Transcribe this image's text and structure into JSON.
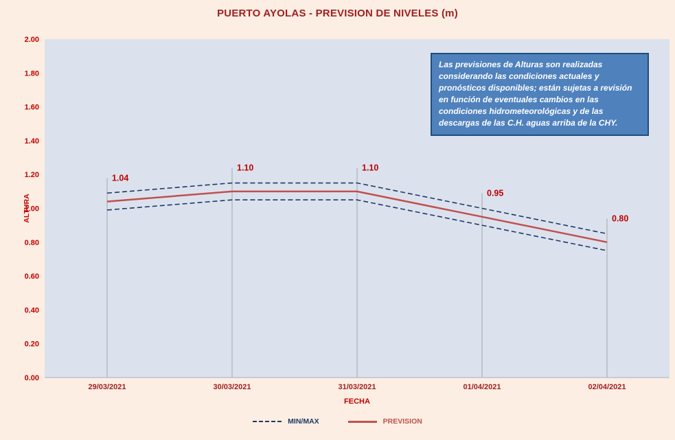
{
  "title": "PUERTO AYOLAS - PREVISION DE NIVELES (m)",
  "info_box": {
    "text": "Las previsiones de Alturas son realizadas considerando las condiciones actuales y pronósticos disponibles;  están sujetas a revisión en función de eventuales cambios en las condiciones hidrometeorológicas y de las descargas de las C.H. aguas arriba de la CHY."
  },
  "legend": [
    {
      "label": "MIN/MAX",
      "style": "dashed",
      "color": "#1F3864"
    },
    {
      "label": "PREVISION",
      "style": "solid",
      "color": "#C0504D"
    }
  ],
  "chart_data": {
    "type": "line",
    "title": "PUERTO AYOLAS - PREVISION DE NIVELES (m)",
    "categories": [
      "29/03/2021",
      "30/03/2021",
      "31/03/2021",
      "01/04/2021",
      "02/04/2021"
    ],
    "series": [
      {
        "name": "MAX",
        "values": [
          1.09,
          1.15,
          1.15,
          1.0,
          0.85
        ],
        "color": "#1F3864",
        "dash": true
      },
      {
        "name": "PREVISION",
        "values": [
          1.04,
          1.1,
          1.1,
          0.95,
          0.8
        ],
        "color": "#C0504D",
        "dash": false
      },
      {
        "name": "MIN",
        "values": [
          0.99,
          1.05,
          1.05,
          0.9,
          0.75
        ],
        "color": "#1F3864",
        "dash": true
      }
    ],
    "data_labels": [
      "1.04",
      "1.10",
      "1.10",
      "0.95",
      "0.80"
    ],
    "xlabel": "FECHA",
    "ylabel": "ALTURA",
    "ylim": [
      0.0,
      2.0
    ],
    "ytick_step": 0.2,
    "yticks": [
      "2.00",
      "1.80",
      "1.60",
      "1.40",
      "1.20",
      "1.00",
      "0.80",
      "0.60",
      "0.40",
      "0.20",
      "0.00"
    ],
    "grid": false,
    "legend_position": "bottom"
  },
  "colors": {
    "background": "#FCEEE3",
    "plot_background": "#DBE2EE",
    "prevision": "#C0504D",
    "minmax": "#1F3864",
    "label_red": "#C00000",
    "axis_red": "#C00000",
    "date_red": "#A02020",
    "title_red": "#A02020",
    "info_fill": "#4F81BD",
    "info_border": "#1F4E79",
    "dropline": "#A6A6A6",
    "axis_line": "#A6AFC0"
  }
}
